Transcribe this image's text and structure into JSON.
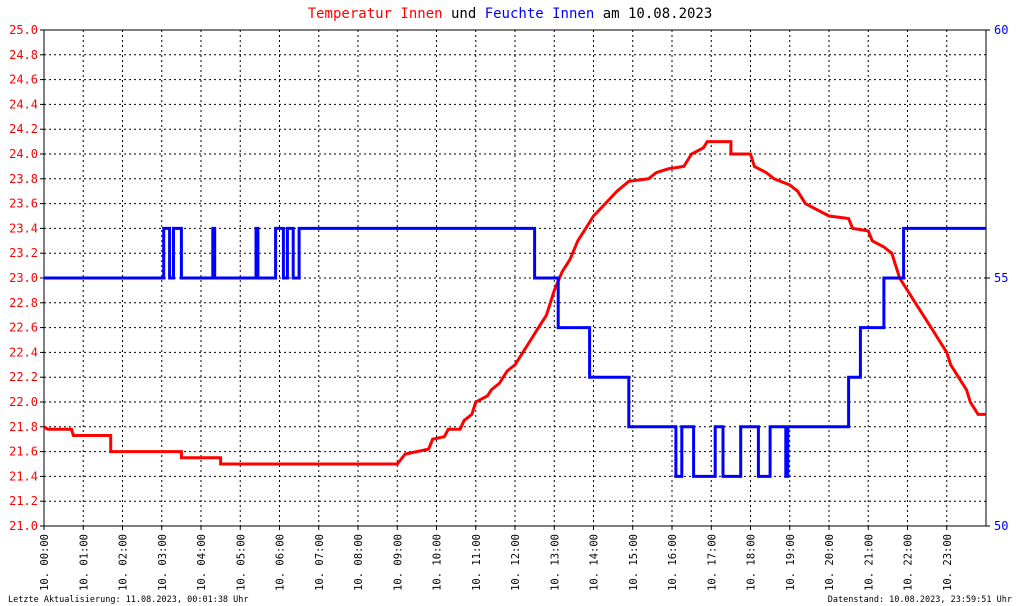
{
  "title": {
    "part1": "Temperatur Innen",
    "part2": " und ",
    "part3": "Feuchte Innen",
    "part4": " am 10.08.2023"
  },
  "footer": {
    "left": "Letzte Aktualisierung: 11.08.2023, 00:01:38 Uhr",
    "right": "Datenstand: 10.08.2023, 23:59:51 Uhr"
  },
  "colors": {
    "temperature": "#ff0000",
    "humidity": "#0000ff",
    "axis": "#000000",
    "grid": "#000000"
  },
  "chart_data": {
    "type": "line",
    "grid": true,
    "x_unit": "hour of day 10.08.2023",
    "xlim": [
      0,
      24
    ],
    "x_ticks": [
      "10. 00:00",
      "10. 01:00",
      "10. 02:00",
      "10. 03:00",
      "10. 04:00",
      "10. 05:00",
      "10. 06:00",
      "10. 07:00",
      "10. 08:00",
      "10. 09:00",
      "10. 10:00",
      "10. 11:00",
      "10. 12:00",
      "10. 13:00",
      "10. 14:00",
      "10. 15:00",
      "10. 16:00",
      "10. 17:00",
      "10. 18:00",
      "10. 19:00",
      "10. 20:00",
      "10. 21:00",
      "10. 22:00",
      "10. 23:00"
    ],
    "y_left": {
      "ylim": [
        21.0,
        25.0
      ],
      "ticks": [
        "21.0",
        "21.2",
        "21.4",
        "21.6",
        "21.8",
        "22.0",
        "22.2",
        "22.4",
        "22.6",
        "22.8",
        "23.0",
        "23.2",
        "23.4",
        "23.6",
        "23.8",
        "24.0",
        "24.2",
        "24.4",
        "24.6",
        "24.8",
        "25.0"
      ]
    },
    "y_right": {
      "ylim": [
        50,
        60
      ],
      "ticks": [
        "50",
        "55",
        "60"
      ]
    },
    "series": [
      {
        "name": "Temperatur Innen",
        "axis": "left",
        "points": [
          [
            0.0,
            21.8
          ],
          [
            0.1,
            21.78
          ],
          [
            0.7,
            21.78
          ],
          [
            0.75,
            21.73
          ],
          [
            1.7,
            21.73
          ],
          [
            1.7,
            21.6
          ],
          [
            3.5,
            21.6
          ],
          [
            3.5,
            21.55
          ],
          [
            4.5,
            21.55
          ],
          [
            4.5,
            21.5
          ],
          [
            9.0,
            21.5
          ],
          [
            9.2,
            21.58
          ],
          [
            9.8,
            21.62
          ],
          [
            9.9,
            21.7
          ],
          [
            10.2,
            21.72
          ],
          [
            10.3,
            21.78
          ],
          [
            10.6,
            21.78
          ],
          [
            10.7,
            21.85
          ],
          [
            10.9,
            21.9
          ],
          [
            11.0,
            22.0
          ],
          [
            11.3,
            22.05
          ],
          [
            11.4,
            22.1
          ],
          [
            11.6,
            22.15
          ],
          [
            11.8,
            22.25
          ],
          [
            12.0,
            22.3
          ],
          [
            12.2,
            22.4
          ],
          [
            12.4,
            22.5
          ],
          [
            12.6,
            22.6
          ],
          [
            12.8,
            22.7
          ],
          [
            13.0,
            22.9
          ],
          [
            13.2,
            23.05
          ],
          [
            13.4,
            23.15
          ],
          [
            13.6,
            23.3
          ],
          [
            13.8,
            23.4
          ],
          [
            14.0,
            23.5
          ],
          [
            14.3,
            23.6
          ],
          [
            14.6,
            23.7
          ],
          [
            14.9,
            23.78
          ],
          [
            15.4,
            23.8
          ],
          [
            15.6,
            23.85
          ],
          [
            15.9,
            23.88
          ],
          [
            16.3,
            23.9
          ],
          [
            16.5,
            24.0
          ],
          [
            16.8,
            24.05
          ],
          [
            16.9,
            24.1
          ],
          [
            17.5,
            24.1
          ],
          [
            17.5,
            24.0
          ],
          [
            18.0,
            24.0
          ],
          [
            18.1,
            23.9
          ],
          [
            18.4,
            23.85
          ],
          [
            18.6,
            23.8
          ],
          [
            19.0,
            23.75
          ],
          [
            19.2,
            23.7
          ],
          [
            19.4,
            23.6
          ],
          [
            20.0,
            23.5
          ],
          [
            20.5,
            23.48
          ],
          [
            20.6,
            23.4
          ],
          [
            21.0,
            23.38
          ],
          [
            21.1,
            23.3
          ],
          [
            21.4,
            23.25
          ],
          [
            21.6,
            23.2
          ],
          [
            21.7,
            23.1
          ],
          [
            21.8,
            23.0
          ],
          [
            22.0,
            22.9
          ],
          [
            22.2,
            22.8
          ],
          [
            22.4,
            22.7
          ],
          [
            22.6,
            22.6
          ],
          [
            22.8,
            22.5
          ],
          [
            23.0,
            22.4
          ],
          [
            23.1,
            22.3
          ],
          [
            23.3,
            22.2
          ],
          [
            23.5,
            22.1
          ],
          [
            23.6,
            22.0
          ],
          [
            23.8,
            21.9
          ],
          [
            24.0,
            21.9
          ]
        ]
      },
      {
        "name": "Feuchte Innen",
        "axis": "right",
        "points": [
          [
            0.0,
            55.0
          ],
          [
            3.05,
            55.0
          ],
          [
            3.05,
            56.0
          ],
          [
            3.2,
            56.0
          ],
          [
            3.2,
            55.0
          ],
          [
            3.3,
            55.0
          ],
          [
            3.3,
            56.0
          ],
          [
            3.5,
            56.0
          ],
          [
            3.5,
            55.0
          ],
          [
            4.3,
            55.0
          ],
          [
            4.3,
            56.0
          ],
          [
            4.35,
            56.0
          ],
          [
            4.35,
            55.0
          ],
          [
            5.4,
            55.0
          ],
          [
            5.4,
            56.0
          ],
          [
            5.45,
            56.0
          ],
          [
            5.45,
            55.0
          ],
          [
            5.9,
            55.0
          ],
          [
            5.9,
            56.0
          ],
          [
            6.1,
            56.0
          ],
          [
            6.1,
            55.0
          ],
          [
            6.2,
            55.0
          ],
          [
            6.2,
            56.0
          ],
          [
            6.35,
            56.0
          ],
          [
            6.35,
            55.0
          ],
          [
            6.5,
            55.0
          ],
          [
            6.5,
            56.0
          ],
          [
            12.5,
            56.0
          ],
          [
            12.5,
            55.0
          ],
          [
            13.1,
            55.0
          ],
          [
            13.1,
            54.0
          ],
          [
            13.9,
            54.0
          ],
          [
            13.9,
            53.0
          ],
          [
            14.9,
            53.0
          ],
          [
            14.9,
            52.0
          ],
          [
            16.1,
            52.0
          ],
          [
            16.1,
            51.0
          ],
          [
            16.25,
            51.0
          ],
          [
            16.25,
            52.0
          ],
          [
            16.55,
            52.0
          ],
          [
            16.55,
            51.0
          ],
          [
            17.1,
            51.0
          ],
          [
            17.1,
            52.0
          ],
          [
            17.3,
            52.0
          ],
          [
            17.3,
            51.0
          ],
          [
            17.75,
            51.0
          ],
          [
            17.75,
            52.0
          ],
          [
            18.2,
            52.0
          ],
          [
            18.2,
            51.0
          ],
          [
            18.5,
            51.0
          ],
          [
            18.5,
            52.0
          ],
          [
            18.9,
            52.0
          ],
          [
            18.9,
            51.0
          ],
          [
            18.95,
            51.0
          ],
          [
            18.95,
            52.0
          ],
          [
            20.5,
            52.0
          ],
          [
            20.5,
            53.0
          ],
          [
            20.8,
            53.0
          ],
          [
            20.8,
            54.0
          ],
          [
            21.4,
            54.0
          ],
          [
            21.4,
            55.0
          ],
          [
            21.9,
            55.0
          ],
          [
            21.9,
            56.0
          ],
          [
            24.0,
            56.0
          ]
        ]
      }
    ]
  }
}
